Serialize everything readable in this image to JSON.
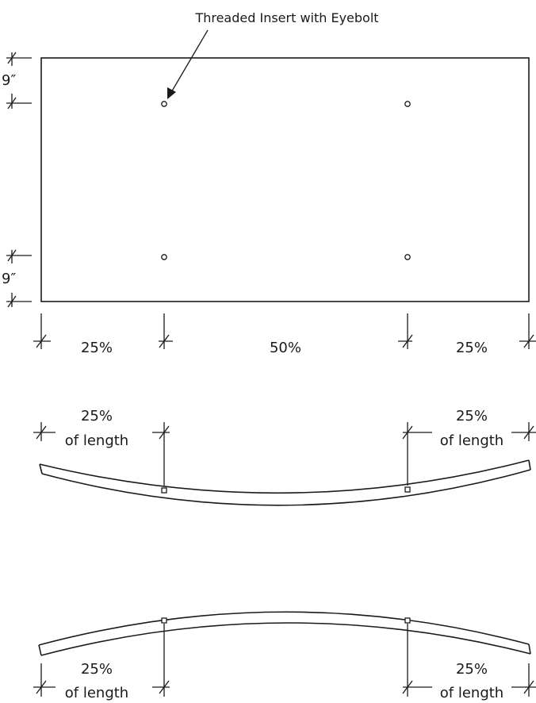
{
  "callout": "Threaded Insert with Eyebolt",
  "plan": {
    "top_offset": "9″",
    "bottom_offset": "9″",
    "segments": [
      "25%",
      "50%",
      "25%"
    ]
  },
  "lift_down": {
    "left_pct": "25%",
    "left_unit": "of length",
    "right_pct": "25%",
    "right_unit": "of length"
  },
  "lift_up": {
    "left_pct": "25%",
    "left_unit": "of length",
    "right_pct": "25%",
    "right_unit": "of length"
  },
  "colors": {
    "line": "#1a1a1a",
    "background": "#ffffff"
  }
}
